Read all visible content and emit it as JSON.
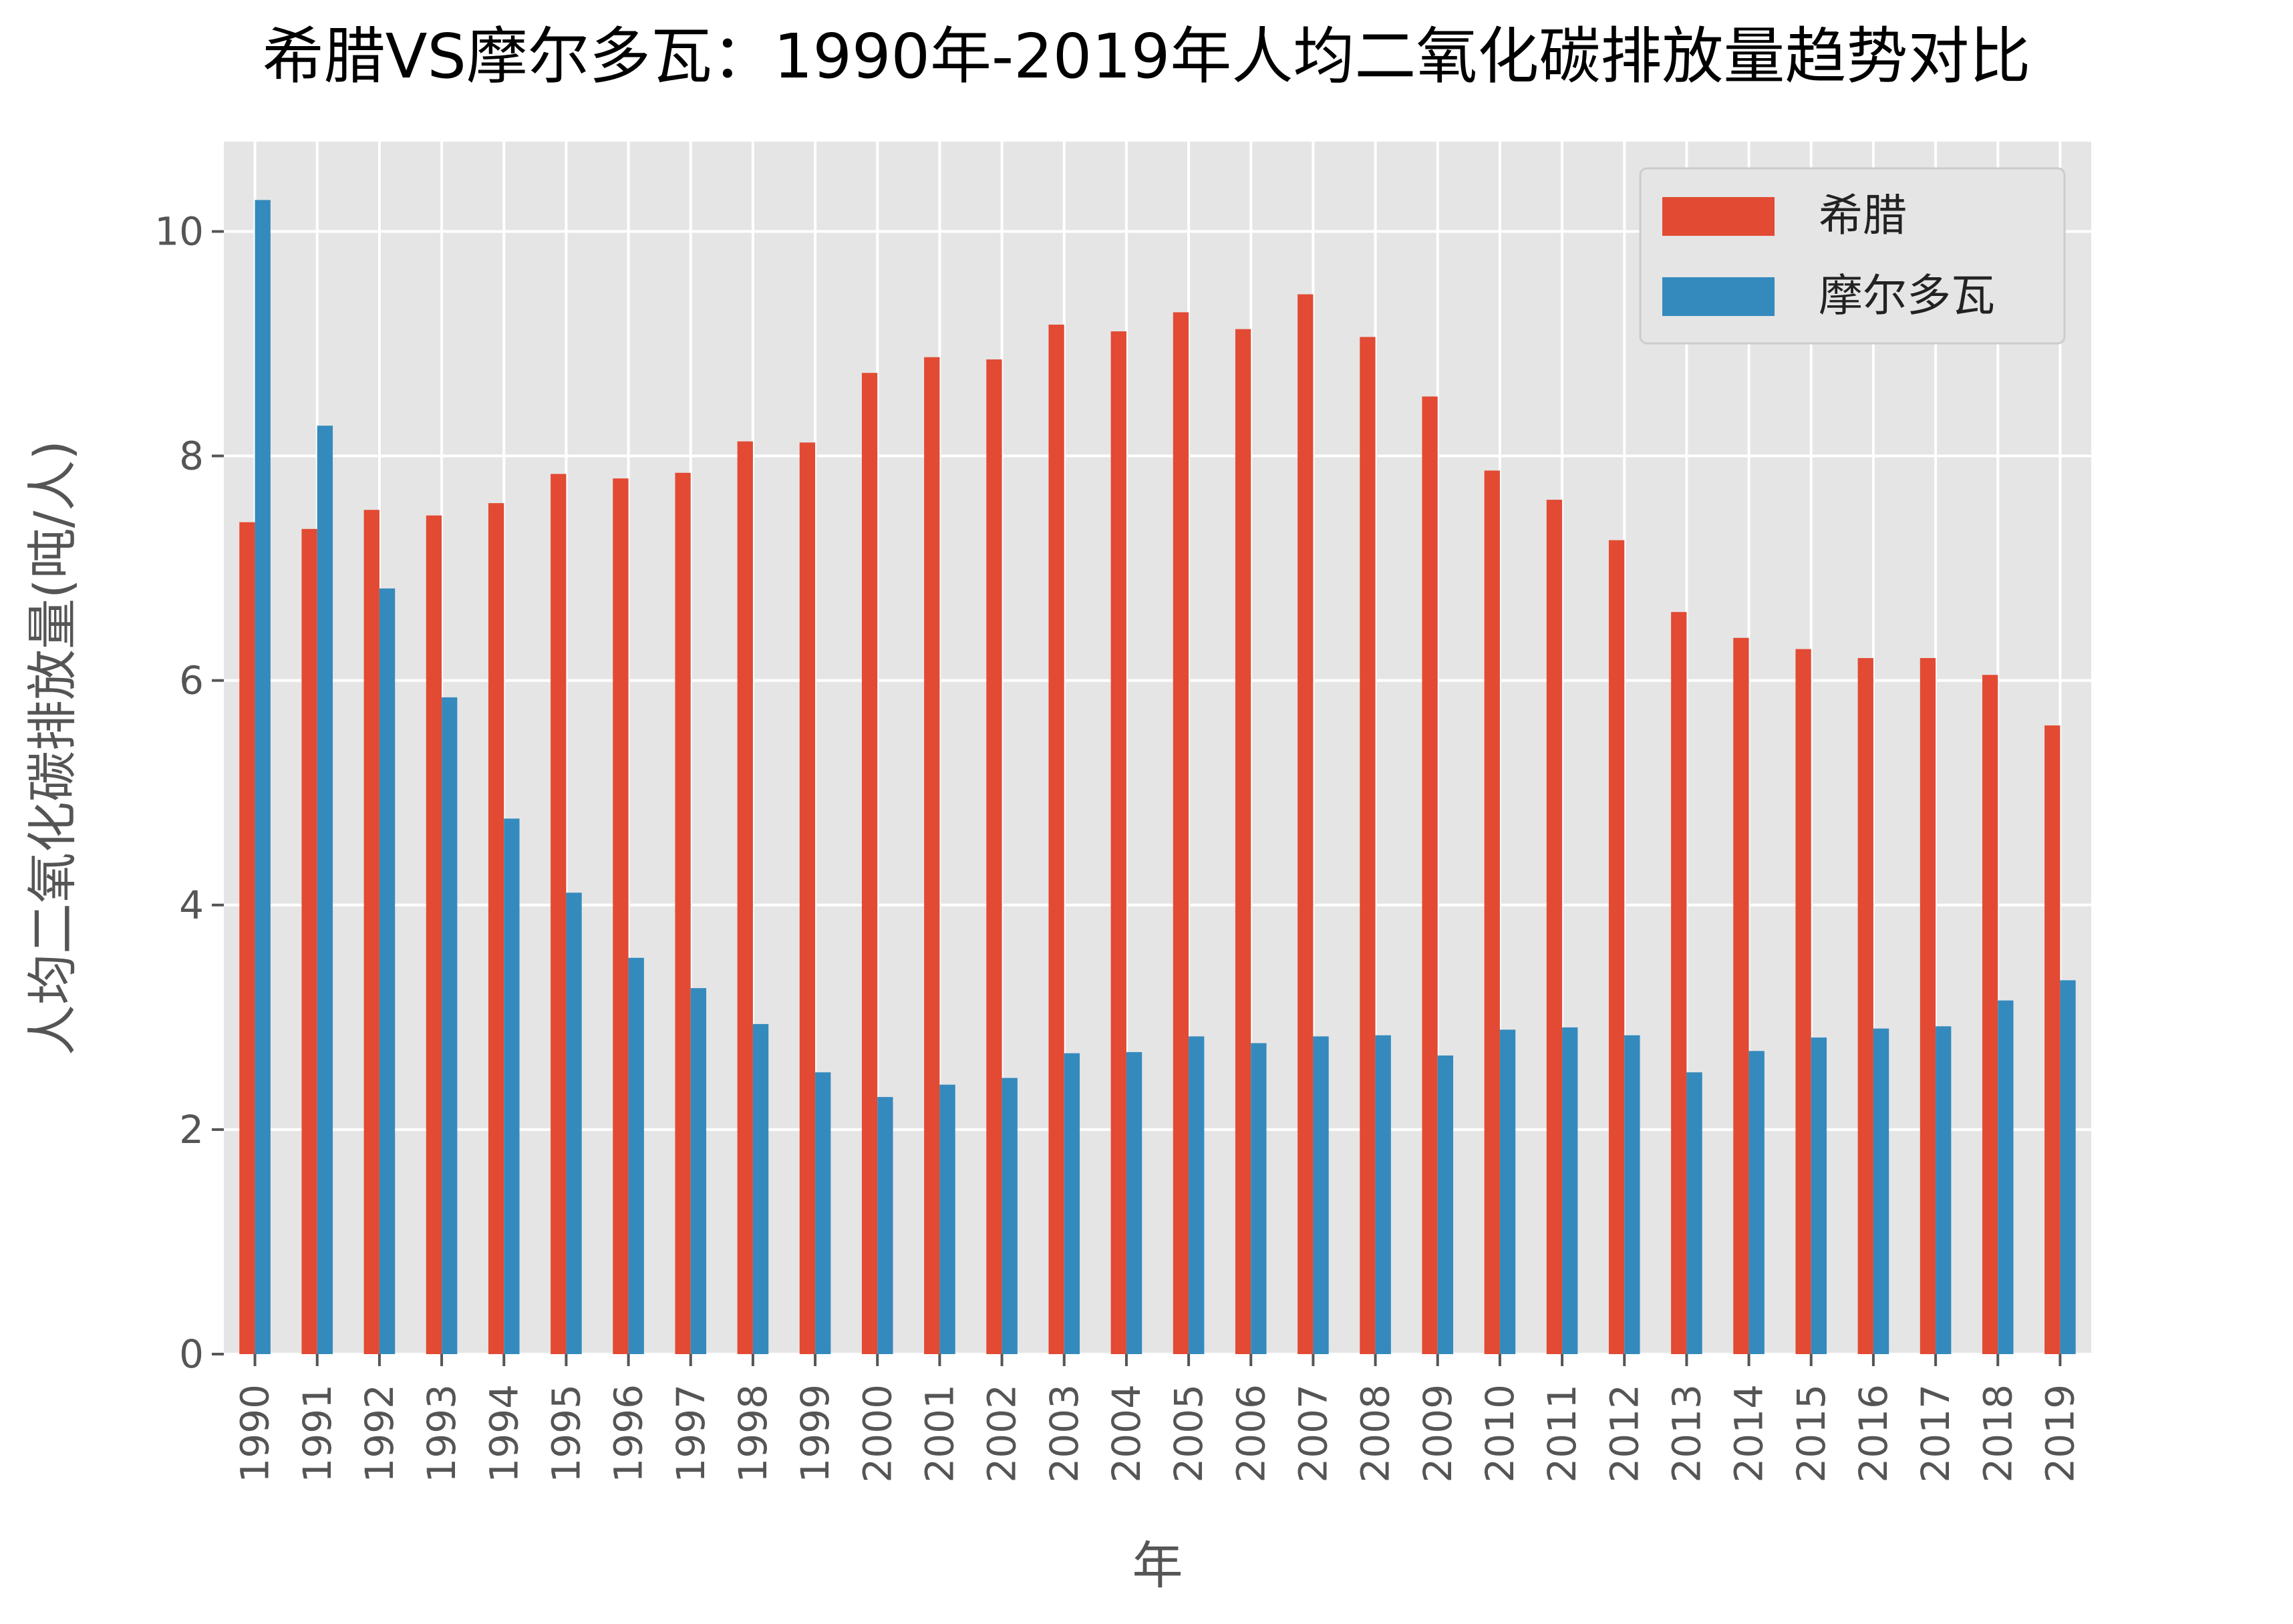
{
  "chart_data": {
    "type": "bar",
    "title": "希腊VS摩尔多瓦：1990年-2019年人均二氧化碳排放量趋势对比",
    "xlabel": "年",
    "ylabel": "人均二氧化碳排放量(吨/人)",
    "ylim": [
      0,
      10.8
    ],
    "yticks": [
      0,
      2,
      4,
      6,
      8,
      10
    ],
    "grid": true,
    "legend_position": "top-right",
    "categories": [
      "1990",
      "1991",
      "1992",
      "1993",
      "1994",
      "1995",
      "1996",
      "1997",
      "1998",
      "1999",
      "2000",
      "2001",
      "2002",
      "2003",
      "2004",
      "2005",
      "2006",
      "2007",
      "2008",
      "2009",
      "2010",
      "2011",
      "2012",
      "2013",
      "2014",
      "2015",
      "2016",
      "2017",
      "2018",
      "2019"
    ],
    "series": [
      {
        "name": "希腊",
        "color": "#E24A33",
        "values": [
          7.41,
          7.35,
          7.52,
          7.47,
          7.58,
          7.84,
          7.8,
          7.85,
          8.13,
          8.12,
          8.74,
          8.88,
          8.86,
          9.17,
          9.11,
          9.28,
          9.13,
          9.44,
          9.06,
          8.53,
          7.87,
          7.61,
          7.25,
          6.61,
          6.38,
          6.28,
          6.2,
          6.2,
          6.05,
          5.6
        ]
      },
      {
        "name": "摩尔多瓦",
        "color": "#348ABD",
        "values": [
          10.28,
          8.27,
          6.82,
          5.85,
          4.77,
          4.11,
          3.53,
          3.26,
          2.94,
          2.51,
          2.29,
          2.4,
          2.46,
          2.68,
          2.69,
          2.83,
          2.77,
          2.83,
          2.84,
          2.66,
          2.89,
          2.91,
          2.84,
          2.51,
          2.7,
          2.82,
          2.9,
          2.92,
          3.15,
          3.33
        ]
      }
    ]
  }
}
